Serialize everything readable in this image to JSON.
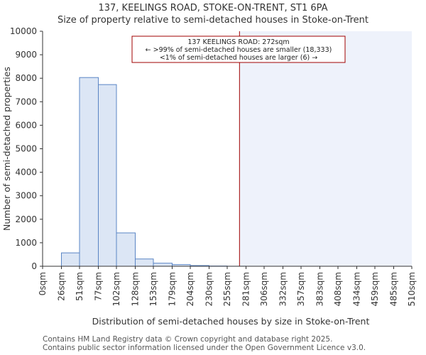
{
  "title": {
    "line1": "137, KEELINGS ROAD, STOKE-ON-TRENT, ST1 6PA",
    "line2": "Size of property relative to semi-detached houses in Stoke-on-Trent"
  },
  "footer": {
    "line1": "Contains HM Land Registry data © Crown copyright and database right 2025.",
    "line2": "Contains public sector information licensed under the Open Government Licence v3.0."
  },
  "colors": {
    "bar_fill": "#dce6f5",
    "bar_stroke": "#5a85c5",
    "marker": "#a00000",
    "highlight_fill": "#eef2fb",
    "grid": "#cccccc",
    "axis": "#333333"
  },
  "chart_data": {
    "type": "bar",
    "title": "Size of property relative to semi-detached houses in Stoke-on-Trent",
    "xlabel": "Distribution of semi-detached houses by size in Stoke-on-Trent",
    "ylabel": "Number of semi-detached properties",
    "ylim": [
      0,
      10000
    ],
    "yticks": [
      0,
      1000,
      2000,
      3000,
      4000,
      5000,
      6000,
      7000,
      8000,
      9000,
      10000
    ],
    "bin_edges": [
      0,
      26,
      51,
      77,
      102,
      128,
      153,
      179,
      204,
      230,
      255,
      281,
      306,
      332,
      357,
      383,
      408,
      434,
      459,
      485,
      510
    ],
    "tick_labels": [
      "0sqm",
      "26sqm",
      "51sqm",
      "77sqm",
      "102sqm",
      "128sqm",
      "153sqm",
      "179sqm",
      "204sqm",
      "230sqm",
      "255sqm",
      "281sqm",
      "306sqm",
      "332sqm",
      "357sqm",
      "383sqm",
      "408sqm",
      "434sqm",
      "459sqm",
      "485sqm",
      "510sqm"
    ],
    "values": [
      0,
      570,
      8030,
      7730,
      1420,
      310,
      130,
      70,
      30,
      10,
      2,
      0,
      0,
      0,
      0,
      0,
      0,
      0,
      0,
      0
    ],
    "marker": {
      "value": 272,
      "label": "137 KEELINGS ROAD: 272sqm",
      "smaller_text": "← >99% of semi-detached houses are smaller (18,333)",
      "larger_text": "<1% of semi-detached houses are larger (6) →"
    },
    "grid": false
  }
}
